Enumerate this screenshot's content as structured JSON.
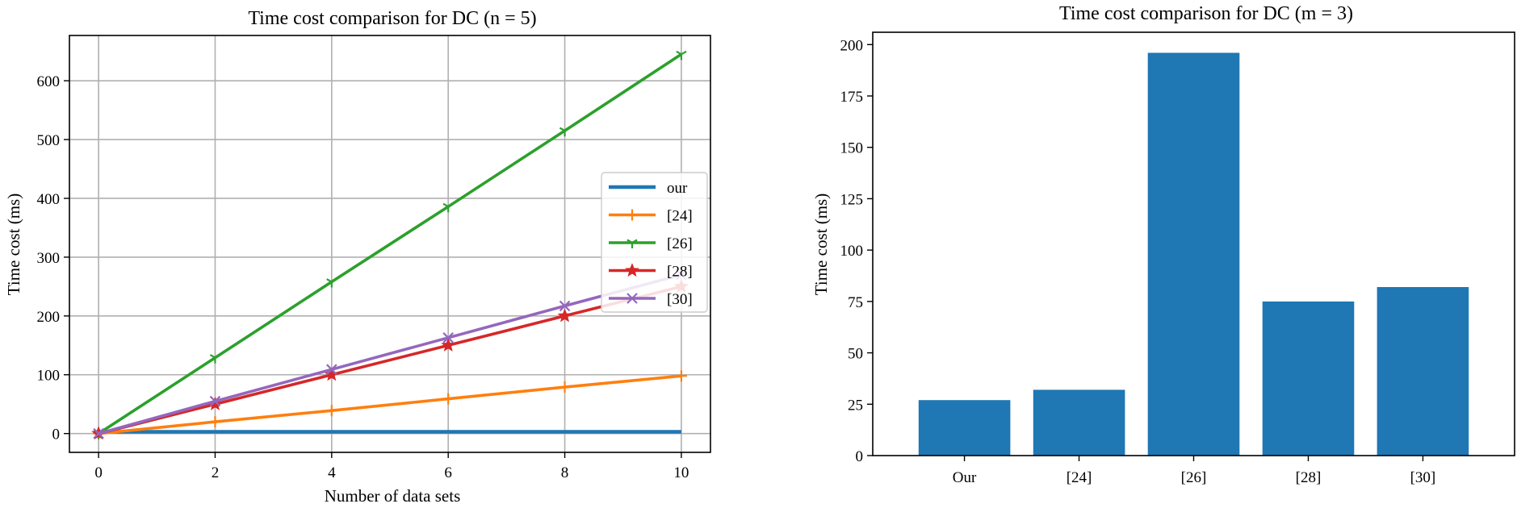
{
  "chart_data": [
    {
      "type": "line",
      "title": "Time cost comparison for DC (n = 5)",
      "xlabel": "Number of data sets",
      "ylabel": "Time cost (ms)",
      "xlim": [
        -0.5,
        10.5
      ],
      "ylim": [
        -32,
        677
      ],
      "xticks": [
        0,
        2,
        4,
        6,
        8,
        10
      ],
      "yticks": [
        0,
        100,
        200,
        300,
        400,
        500,
        600
      ],
      "grid": true,
      "legend_position": "center-right",
      "series": [
        {
          "name": "our",
          "color": "#1f77b4",
          "marker": "none",
          "x": [
            0,
            2,
            4,
            6,
            8,
            10
          ],
          "values": [
            3,
            3,
            3,
            3,
            3,
            3
          ]
        },
        {
          "name": "[24]",
          "color": "#ff7f0e",
          "marker": "plus",
          "x": [
            0,
            2,
            4,
            6,
            8,
            10
          ],
          "values": [
            0,
            20,
            39,
            59,
            79,
            98
          ]
        },
        {
          "name": "[26]",
          "color": "#2ca02c",
          "marker": "tri",
          "x": [
            0,
            2,
            4,
            6,
            8,
            10
          ],
          "values": [
            0,
            129,
            258,
            386,
            515,
            645
          ]
        },
        {
          "name": "[28]",
          "color": "#d62728",
          "marker": "star",
          "x": [
            0,
            2,
            4,
            6,
            8,
            10
          ],
          "values": [
            0,
            50,
            100,
            150,
            200,
            250
          ]
        },
        {
          "name": "[30]",
          "color": "#9467bd",
          "marker": "x",
          "x": [
            0,
            2,
            4,
            6,
            8,
            10
          ],
          "values": [
            0,
            55,
            109,
            163,
            217,
            270
          ]
        }
      ]
    },
    {
      "type": "bar",
      "title": "Time cost comparison for DC (m = 3)",
      "xlabel": "",
      "ylabel": "Time cost (ms)",
      "ylim": [
        0,
        206
      ],
      "yticks": [
        0,
        25,
        50,
        75,
        100,
        125,
        150,
        175,
        200
      ],
      "grid": false,
      "color": "#1f77b4",
      "categories": [
        "Our",
        "[24]",
        "[26]",
        "[28]",
        "[30]"
      ],
      "values": [
        27,
        32,
        196,
        75,
        82
      ]
    }
  ]
}
